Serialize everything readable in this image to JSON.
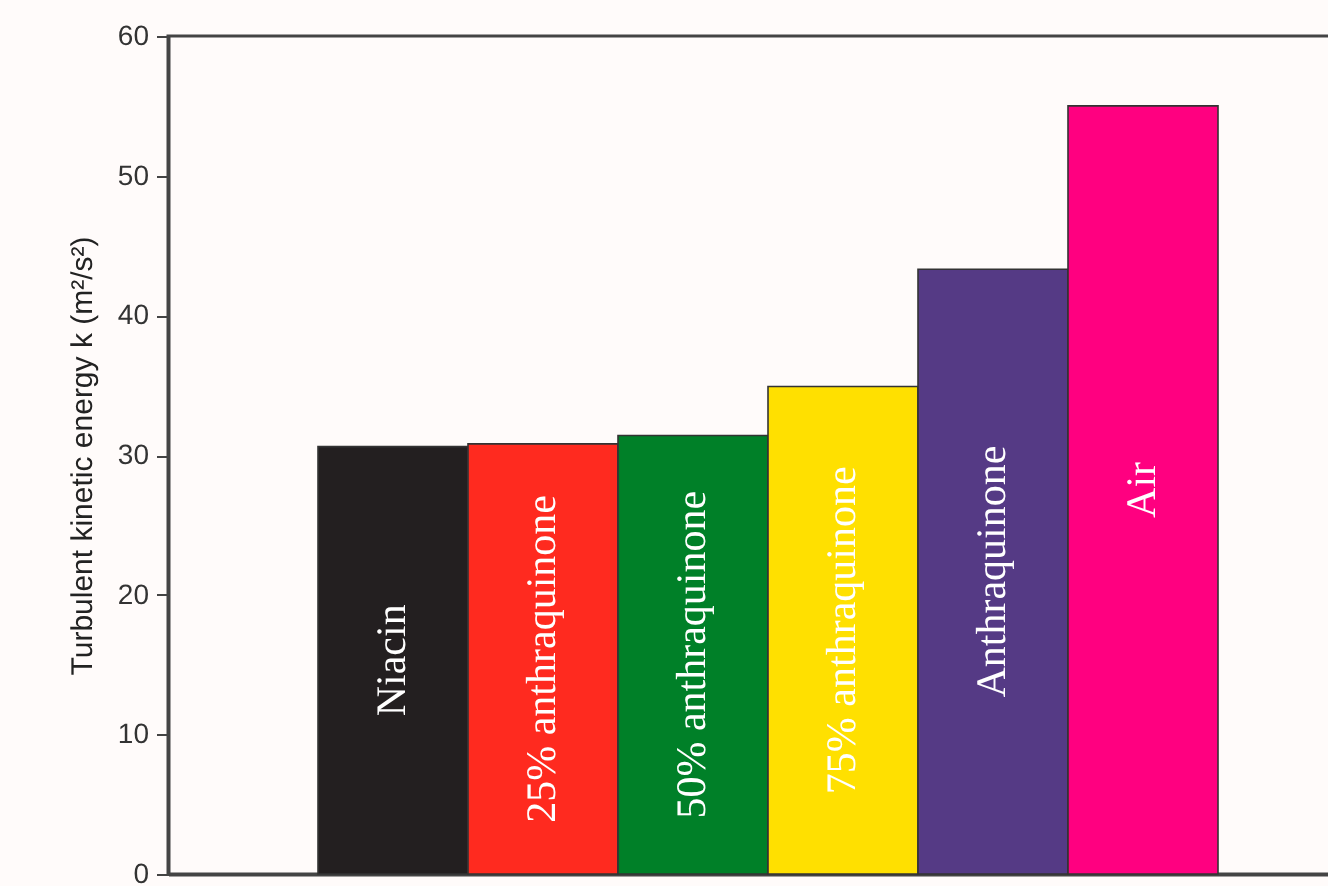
{
  "chart_data": {
    "type": "bar",
    "ylabel": "Turbulent kinetic energy k (m²/s²)",
    "categories": [
      "Niacin",
      "25% anthraquinone",
      "50% anthraquinone",
      "75% anthraquinone",
      "Anthraquinone",
      "Air"
    ],
    "values": [
      30.6,
      30.8,
      31.4,
      34.9,
      43.3,
      55.0
    ],
    "colors": [
      "#231f20",
      "#ff2a1f",
      "#008028",
      "#ffe000",
      "#553a85",
      "#ff0080"
    ],
    "ylim": [
      0,
      60
    ],
    "yticks": [
      0,
      10,
      20,
      30,
      40,
      50,
      60
    ]
  }
}
